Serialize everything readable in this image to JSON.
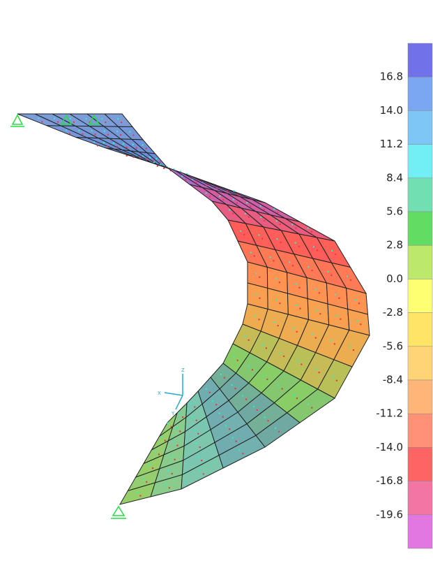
{
  "legend": {
    "labels": [
      "16.8",
      "14.0",
      "11.2",
      "8.4",
      "5.6",
      "2.8",
      "0.0",
      "-2.8",
      "-5.6",
      "-8.4",
      "-11.2",
      "-14.0",
      "-16.8",
      "-19.6"
    ],
    "colors": [
      "#7171ea",
      "#7aa6f2",
      "#7dc6f5",
      "#72eef5",
      "#72dfb2",
      "#63dc63",
      "#bce86c",
      "#ffff72",
      "#ffe466",
      "#ffd477",
      "#ffb577",
      "#ff9276",
      "#ff6464",
      "#f275a4",
      "#e277e2"
    ]
  },
  "axes": {
    "x": "X",
    "y": "Y",
    "z": "Z"
  }
}
